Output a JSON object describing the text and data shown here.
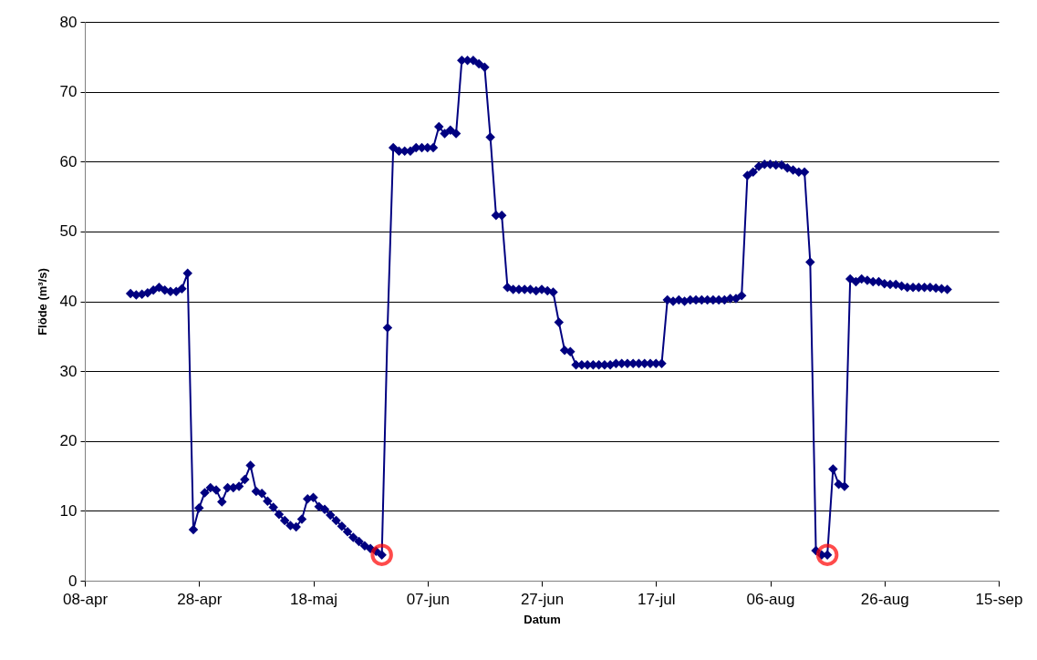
{
  "chart_data": {
    "type": "line",
    "xlabel": "Datum",
    "ylabel": "Flöde (m³/s)",
    "x": [
      "--04-16",
      "--04-17",
      "--04-18",
      "--04-19",
      "--04-20",
      "--04-21",
      "--04-22",
      "--04-23",
      "--04-24",
      "--04-25",
      "--04-26",
      "--04-27",
      "--04-28",
      "--04-29",
      "--04-30",
      "--05-01",
      "--05-02",
      "--05-03",
      "--05-04",
      "--05-05",
      "--05-06",
      "--05-07",
      "--05-08",
      "--05-09",
      "--05-10",
      "--05-11",
      "--05-12",
      "--05-13",
      "--05-14",
      "--05-15",
      "--05-16",
      "--05-17",
      "--05-18",
      "--05-19",
      "--05-20",
      "--05-21",
      "--05-22",
      "--05-23",
      "--05-24",
      "--05-25",
      "--05-26",
      "--05-27",
      "--05-28",
      "--05-29",
      "--05-30",
      "--05-31",
      "--06-01",
      "--06-02",
      "--06-03",
      "--06-04",
      "--06-05",
      "--06-06",
      "--06-07",
      "--06-08",
      "--06-09",
      "--06-10",
      "--06-11",
      "--06-12",
      "--06-13",
      "--06-14",
      "--06-15",
      "--06-16",
      "--06-17",
      "--06-18",
      "--06-19",
      "--06-20",
      "--06-21",
      "--06-22",
      "--06-23",
      "--06-24",
      "--06-25",
      "--06-26",
      "--06-27",
      "--06-28",
      "--06-29",
      "--06-30",
      "--07-01",
      "--07-02",
      "--07-03",
      "--07-04",
      "--07-05",
      "--07-06",
      "--07-07",
      "--07-08",
      "--07-09",
      "--07-10",
      "--07-11",
      "--07-12",
      "--07-13",
      "--07-14",
      "--07-15",
      "--07-16",
      "--07-17",
      "--07-18",
      "--07-19",
      "--07-20",
      "--07-21",
      "--07-22",
      "--07-23",
      "--07-24",
      "--07-25",
      "--07-26",
      "--07-27",
      "--07-28",
      "--07-29",
      "--07-30",
      "--07-31",
      "--08-01",
      "--08-02",
      "--08-03",
      "--08-04",
      "--08-05",
      "--08-06",
      "--08-07",
      "--08-08",
      "--08-09",
      "--08-10",
      "--08-11",
      "--08-12",
      "--08-13",
      "--08-14",
      "--08-15",
      "--08-16",
      "--08-17",
      "--08-18",
      "--08-19",
      "--08-20",
      "--08-21",
      "--08-22",
      "--08-23",
      "--08-24",
      "--08-25",
      "--08-26",
      "--08-27",
      "--08-28",
      "--08-29",
      "--08-30",
      "--08-31",
      "--09-01",
      "--09-02",
      "--09-03",
      "--09-04",
      "--09-05",
      "--09-06"
    ],
    "series": [
      {
        "color": "#000080",
        "values": [
          41.1,
          40.9,
          41.0,
          41.2,
          41.6,
          42.0,
          41.6,
          41.4,
          41.4,
          41.8,
          44.0,
          7.3,
          10.4,
          12.6,
          13.3,
          13.0,
          11.3,
          13.3,
          13.3,
          13.5,
          14.5,
          16.5,
          12.8,
          12.5,
          11.4,
          10.5,
          9.5,
          8.6,
          7.9,
          7.7,
          8.8,
          11.7,
          11.9,
          10.6,
          10.2,
          9.4,
          8.6,
          7.8,
          7.0,
          6.2,
          5.6,
          5.0,
          4.6,
          4.2,
          3.7,
          36.2,
          62.0,
          61.5,
          61.5,
          61.5,
          62.0,
          62.0,
          62.0,
          62.0,
          65.0,
          64.0,
          64.5,
          64.0,
          74.5,
          74.5,
          74.5,
          74.0,
          73.5,
          63.5,
          52.3,
          52.3,
          42.0,
          41.7,
          41.7,
          41.7,
          41.7,
          41.5,
          41.7,
          41.5,
          41.3,
          37.0,
          33.0,
          32.8,
          30.9,
          30.9,
          30.9,
          30.9,
          30.9,
          30.9,
          30.9,
          31.1,
          31.1,
          31.1,
          31.1,
          31.1,
          31.1,
          31.1,
          31.1,
          31.1,
          40.2,
          40.0,
          40.2,
          40.0,
          40.2,
          40.2,
          40.2,
          40.2,
          40.2,
          40.2,
          40.2,
          40.4,
          40.4,
          40.8,
          58.0,
          58.5,
          59.3,
          59.6,
          59.6,
          59.5,
          59.5,
          59.1,
          58.8,
          58.5,
          58.5,
          45.6,
          4.3,
          3.7,
          3.7,
          16.0,
          13.8,
          13.5,
          43.2,
          42.8,
          43.2,
          43.0,
          42.8,
          42.8,
          42.5,
          42.4,
          42.4,
          42.2,
          42.0,
          42.0,
          42.0,
          42.0,
          42.0,
          41.9,
          41.8,
          41.7
        ]
      },
      {
        "type": "scatter",
        "marker": "circle",
        "color": "#ff0000",
        "x": [
          "--05-30",
          "--08-16"
        ],
        "values": [
          3.7,
          3.7
        ]
      }
    ],
    "xlim": [
      "--04-08",
      "--09-15"
    ],
    "xticks": [
      {
        "value": "--04-08",
        "label": "08-apr"
      },
      {
        "value": "--04-28",
        "label": "28-apr"
      },
      {
        "value": "--05-18",
        "label": "18-maj"
      },
      {
        "value": "--06-07",
        "label": "07-jun"
      },
      {
        "value": "--06-27",
        "label": "27-jun"
      },
      {
        "value": "--07-17",
        "label": "17-jul"
      },
      {
        "value": "--08-06",
        "label": "06-aug"
      },
      {
        "value": "--08-26",
        "label": "26-aug"
      },
      {
        "value": "--09-15",
        "label": "15-sep"
      }
    ],
    "ylim": [
      0,
      80
    ],
    "yticks": [
      0,
      10,
      20,
      30,
      40,
      50,
      60,
      70,
      80
    ],
    "grid": "y",
    "marker": "diamond",
    "line_style": "solid"
  }
}
